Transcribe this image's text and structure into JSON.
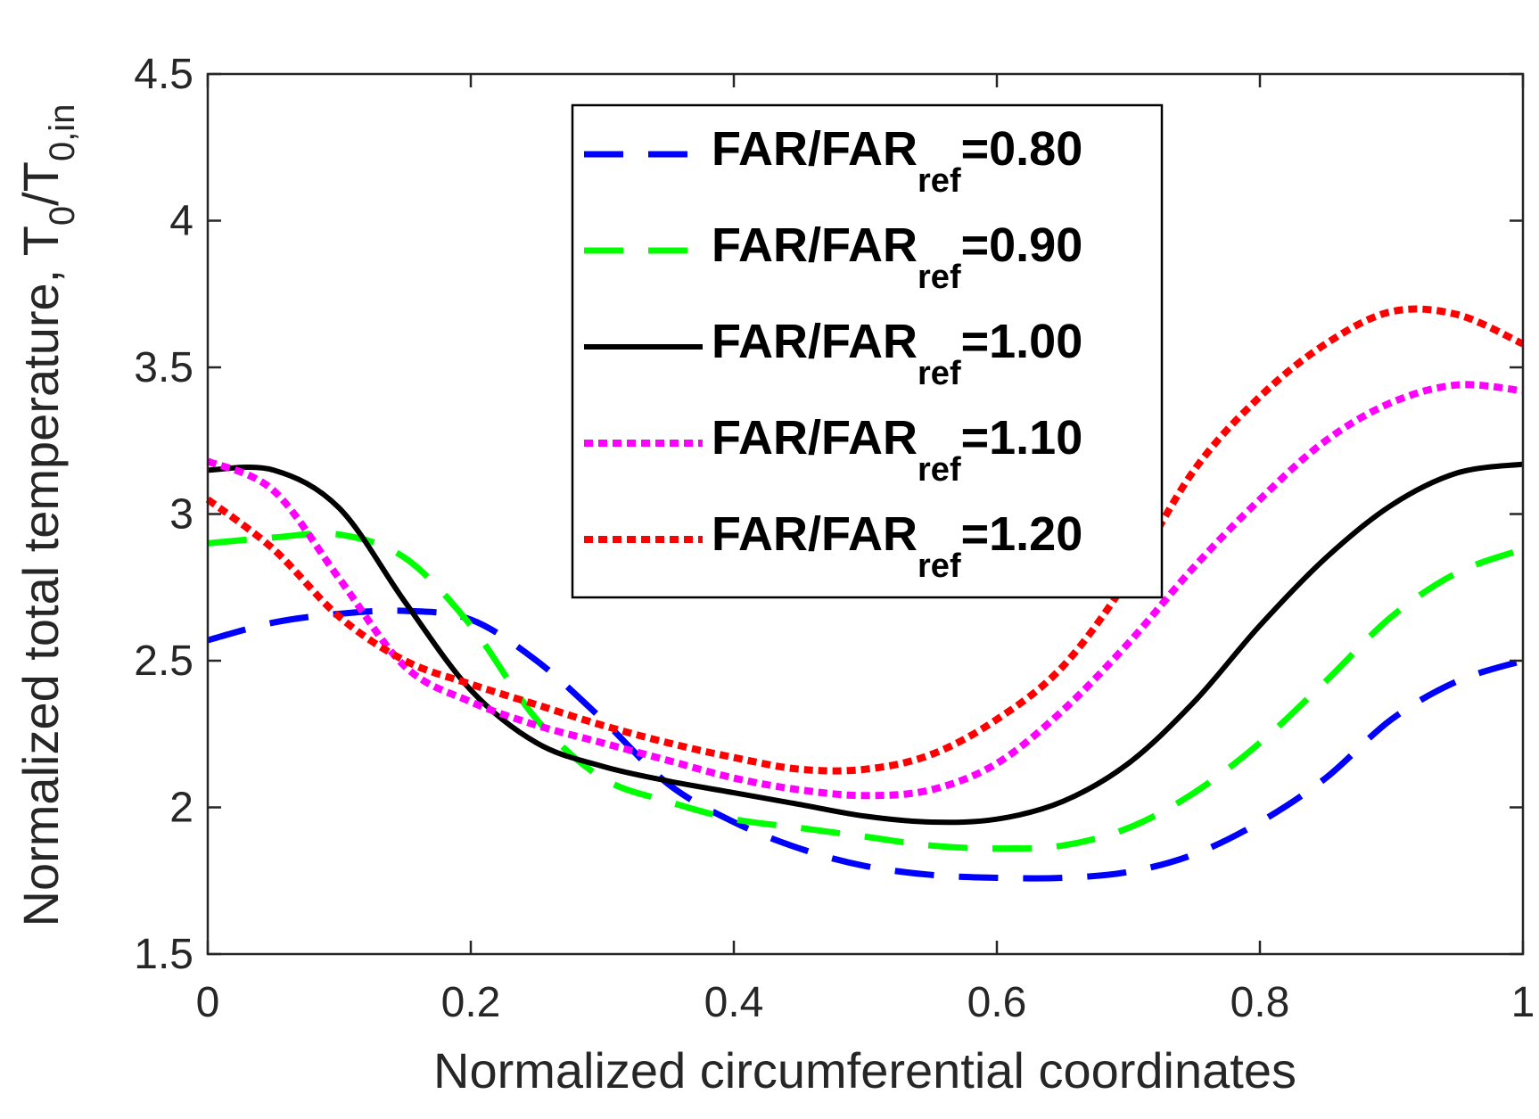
{
  "chart_data": {
    "type": "line",
    "title": "",
    "xlabel": "Normalized circumferential coordinates",
    "ylabel": {
      "main": "Normalized total temperature, T",
      "sub1": "0",
      "mid": "/T",
      "sub2": "0,in"
    },
    "xlim": [
      0,
      1
    ],
    "ylim": [
      1.5,
      4.5
    ],
    "xticks": [
      0,
      0.2,
      0.4,
      0.6,
      0.8,
      1
    ],
    "xtick_labels": [
      "0",
      "0.2",
      "0.4",
      "0.6",
      "0.8",
      "1"
    ],
    "yticks": [
      1.5,
      2,
      2.5,
      3,
      3.5,
      4,
      4.5
    ],
    "ytick_labels": [
      "1.5",
      "2",
      "2.5",
      "3",
      "3.5",
      "4",
      "4.5"
    ],
    "grid": false,
    "legend_position": "top-center",
    "x": [
      0,
      0.05,
      0.1,
      0.15,
      0.2,
      0.25,
      0.3,
      0.35,
      0.4,
      0.45,
      0.5,
      0.55,
      0.6,
      0.65,
      0.7,
      0.75,
      0.8,
      0.85,
      0.9,
      0.95,
      1
    ],
    "series": [
      {
        "name": "FAR/FAR",
        "sub": "ref",
        "suffix": "=0.80",
        "color": "#0000ff",
        "dash": "dashed",
        "values": [
          2.57,
          2.63,
          2.66,
          2.67,
          2.64,
          2.5,
          2.3,
          2.08,
          1.95,
          1.86,
          1.8,
          1.77,
          1.76,
          1.76,
          1.78,
          1.84,
          1.95,
          2.1,
          2.3,
          2.43,
          2.5
        ]
      },
      {
        "name": "FAR/FAR",
        "sub": "ref",
        "suffix": "=0.90",
        "color": "#00ff00",
        "dash": "dashed",
        "values": [
          2.9,
          2.92,
          2.93,
          2.85,
          2.62,
          2.3,
          2.1,
          2.02,
          1.96,
          1.93,
          1.9,
          1.87,
          1.86,
          1.87,
          1.93,
          2.05,
          2.22,
          2.43,
          2.65,
          2.8,
          2.88
        ]
      },
      {
        "name": "FAR/FAR",
        "sub": "ref",
        "suffix": "=1.00",
        "color": "#000000",
        "dash": "solid",
        "values": [
          3.15,
          3.15,
          3.02,
          2.7,
          2.4,
          2.22,
          2.14,
          2.09,
          2.05,
          2.01,
          1.97,
          1.95,
          1.96,
          2.02,
          2.15,
          2.36,
          2.62,
          2.85,
          3.03,
          3.14,
          3.17
        ]
      },
      {
        "name": "FAR/FAR",
        "sub": "ref",
        "suffix": "=1.10",
        "color": "#ff00ff",
        "dash": "dotted",
        "values": [
          3.18,
          3.08,
          2.78,
          2.48,
          2.36,
          2.28,
          2.22,
          2.16,
          2.1,
          2.06,
          2.04,
          2.06,
          2.15,
          2.33,
          2.56,
          2.82,
          3.05,
          3.25,
          3.38,
          3.44,
          3.42
        ]
      },
      {
        "name": "FAR/FAR",
        "sub": "ref",
        "suffix": "=1.20",
        "color": "#ff0000",
        "dash": "dotted",
        "values": [
          3.05,
          2.88,
          2.65,
          2.5,
          2.42,
          2.35,
          2.28,
          2.22,
          2.17,
          2.13,
          2.13,
          2.18,
          2.3,
          2.48,
          2.78,
          3.15,
          3.4,
          3.58,
          3.69,
          3.68,
          3.58
        ]
      }
    ]
  }
}
